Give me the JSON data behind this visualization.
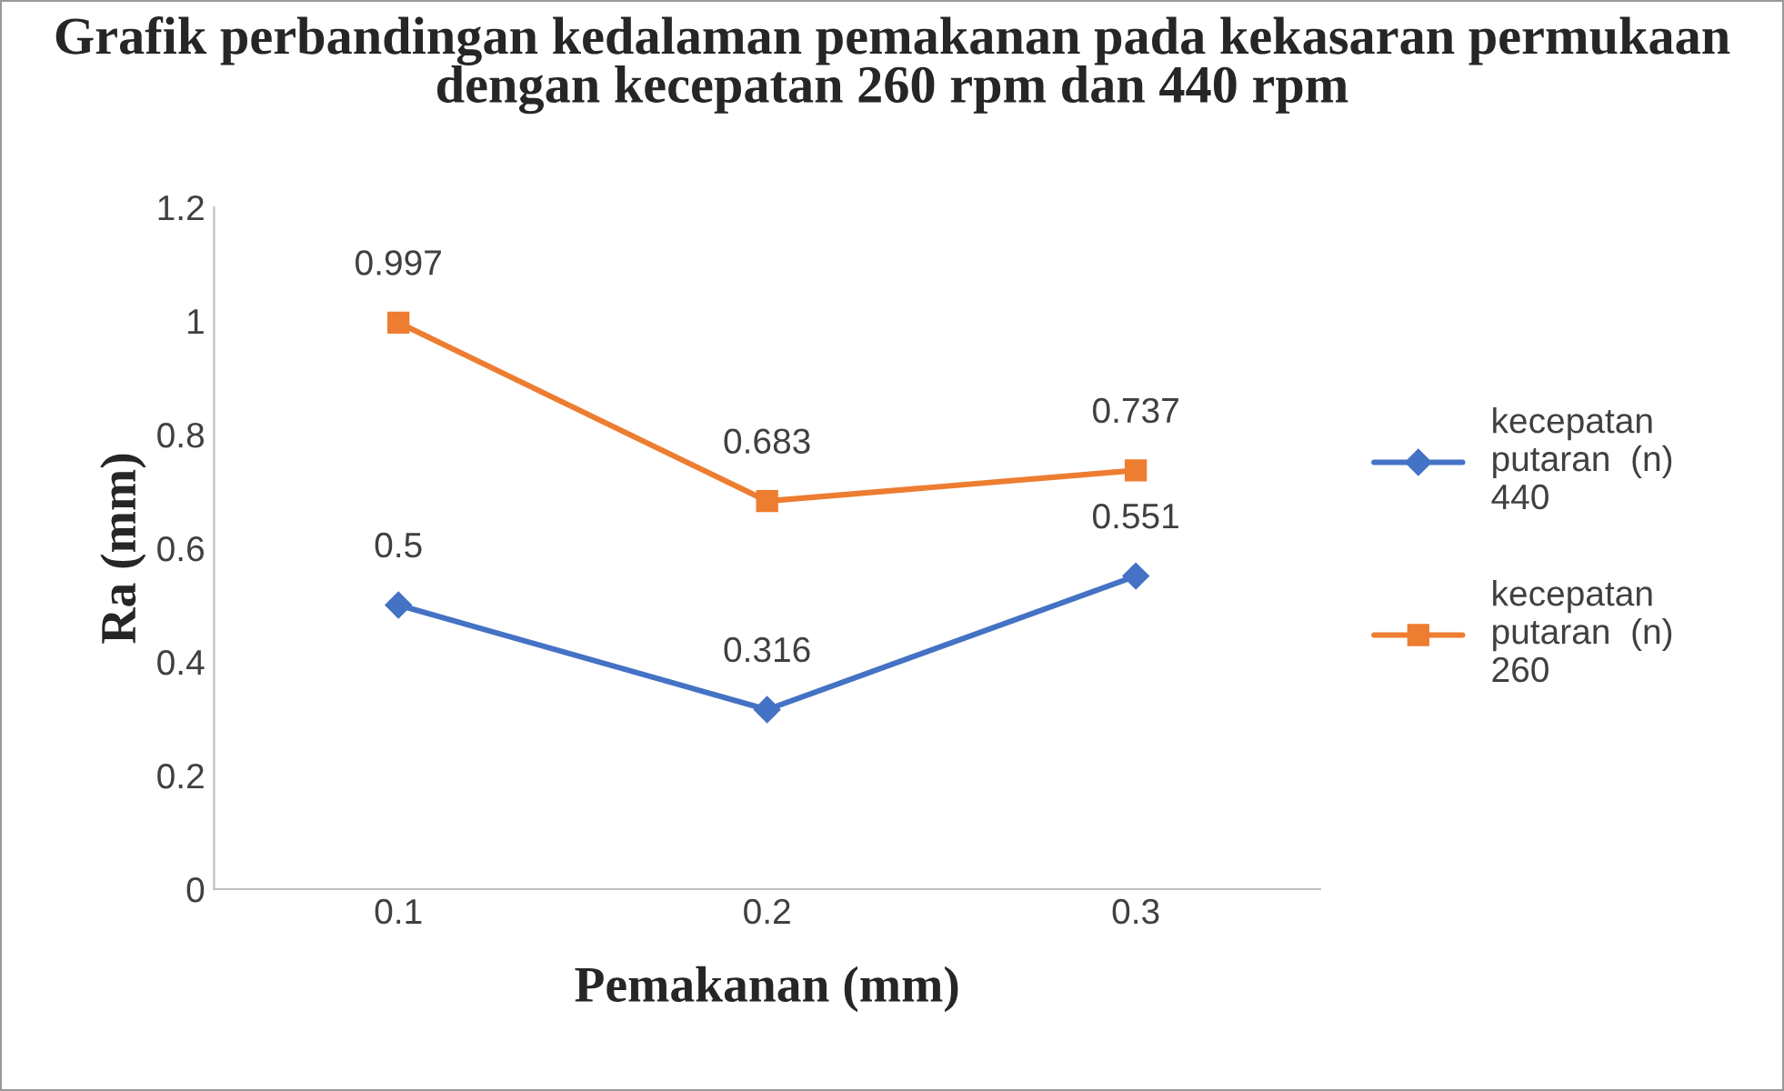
{
  "chart_data": {
    "type": "line",
    "title": "Grafik perbandingan kedalaman pemakanan pada kekasaran permukaan dengan kecepatan 260 rpm dan 440 rpm",
    "xlabel": "Pemakanan (mm)",
    "ylabel": "Ra (mm)",
    "categories": [
      "0.1",
      "0.2",
      "0.3"
    ],
    "series": [
      {
        "name": "kecepatan putaran  (n) 440",
        "color": "#4472c4",
        "marker": "diamond",
        "values": [
          0.5,
          0.316,
          0.551
        ]
      },
      {
        "name": "kecepatan putaran  (n) 260",
        "color": "#ed7d31",
        "marker": "square",
        "values": [
          0.997,
          0.683,
          0.737
        ]
      }
    ],
    "ylim": [
      0,
      1.2
    ],
    "yticks": [
      0,
      0.2,
      0.4,
      0.6,
      0.8,
      1,
      1.2
    ],
    "grid": false,
    "legend": "right",
    "data_labels": true,
    "line_style": "solid"
  }
}
